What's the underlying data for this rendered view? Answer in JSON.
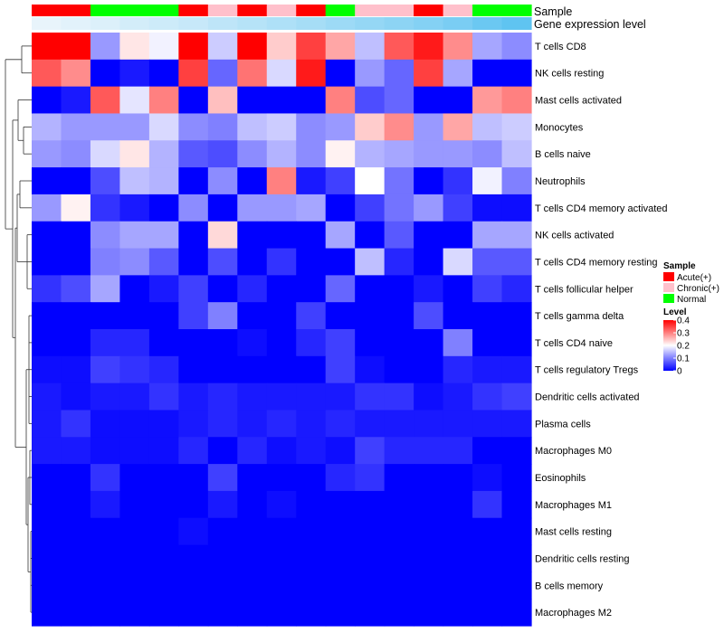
{
  "chart_data": {
    "type": "heatmap",
    "title": "",
    "annotations": {
      "sample_label": "Sample",
      "expression_label": "Gene expression level"
    },
    "sample_groups": [
      "Acute(+)",
      "Acute(+)",
      "Normal",
      "Normal",
      "Normal",
      "Acute(+)",
      "Chronic(+)",
      "Acute(+)",
      "Chronic(+)",
      "Acute(+)",
      "Normal",
      "Chronic(+)",
      "Chronic(+)",
      "Acute(+)",
      "Chronic(+)",
      "Normal",
      "Normal"
    ],
    "gene_expression": [
      0.02,
      0.05,
      0.08,
      0.12,
      0.15,
      0.18,
      0.22,
      0.26,
      0.3,
      0.34,
      0.38,
      0.42,
      0.46,
      0.5,
      0.55,
      0.62,
      0.68
    ],
    "rows": [
      "T cells CD8",
      "NK cells resting",
      "Mast cells activated",
      "Monocytes",
      "B cells naive",
      "Neutrophils",
      "T cells CD4 memory activated",
      "NK cells activated",
      "T cells CD4 memory resting",
      "T cells follicular helper",
      "T cells gamma delta",
      "T cells CD4 naive",
      "T cells regulatory  Tregs",
      "Dendritic cells activated",
      "Plasma cells",
      "Macrophages M0",
      "Eosinophils",
      "Macrophages M1",
      "Mast cells resting",
      "Dendritic cells resting",
      "B cells memory",
      "Macrophages M2"
    ],
    "values": [
      [
        0.4,
        0.4,
        0.12,
        0.22,
        0.19,
        0.4,
        0.16,
        0.4,
        0.24,
        0.35,
        0.27,
        0.15,
        0.33,
        0.38,
        0.29,
        0.13,
        0.11
      ],
      [
        0.33,
        0.29,
        0.0,
        0.02,
        0.0,
        0.35,
        0.08,
        0.31,
        0.17,
        0.38,
        0.0,
        0.12,
        0.08,
        0.35,
        0.13,
        0.0,
        0.0
      ],
      [
        0.0,
        0.02,
        0.33,
        0.18,
        0.3,
        0.0,
        0.25,
        0.0,
        0.0,
        0.0,
        0.3,
        0.06,
        0.08,
        0.0,
        0.0,
        0.28,
        0.3
      ],
      [
        0.14,
        0.12,
        0.12,
        0.12,
        0.17,
        0.11,
        0.1,
        0.15,
        0.16,
        0.11,
        0.12,
        0.24,
        0.29,
        0.12,
        0.27,
        0.15,
        0.16
      ],
      [
        0.12,
        0.11,
        0.17,
        0.22,
        0.14,
        0.07,
        0.06,
        0.11,
        0.14,
        0.11,
        0.21,
        0.14,
        0.13,
        0.12,
        0.12,
        0.11,
        0.15
      ],
      [
        0.0,
        0.0,
        0.06,
        0.15,
        0.14,
        0.0,
        0.11,
        0.0,
        0.3,
        0.02,
        0.05,
        0.2,
        0.09,
        0.0,
        0.04,
        0.19,
        0.1
      ],
      [
        0.12,
        0.21,
        0.04,
        0.02,
        0.0,
        0.11,
        0.0,
        0.12,
        0.12,
        0.13,
        0.0,
        0.05,
        0.09,
        0.12,
        0.05,
        0.01,
        0.01
      ],
      [
        0.0,
        0.0,
        0.11,
        0.13,
        0.13,
        0.0,
        0.23,
        0.0,
        0.0,
        0.0,
        0.13,
        0.0,
        0.07,
        0.0,
        0.0,
        0.13,
        0.13
      ],
      [
        0.0,
        0.0,
        0.1,
        0.11,
        0.07,
        0.0,
        0.06,
        0.0,
        0.04,
        0.0,
        0.0,
        0.15,
        0.03,
        0.0,
        0.17,
        0.07,
        0.07
      ],
      [
        0.04,
        0.06,
        0.13,
        0.0,
        0.02,
        0.05,
        0.0,
        0.03,
        0.0,
        0.0,
        0.08,
        0.0,
        0.0,
        0.02,
        0.0,
        0.05,
        0.03
      ],
      [
        0.0,
        0.0,
        0.0,
        0.0,
        0.0,
        0.05,
        0.1,
        0.0,
        0.0,
        0.05,
        0.0,
        0.0,
        0.0,
        0.06,
        0.0,
        0.0,
        0.0
      ],
      [
        0.0,
        0.0,
        0.03,
        0.03,
        0.0,
        0.0,
        0.0,
        0.01,
        0.0,
        0.03,
        0.05,
        0.0,
        0.0,
        0.0,
        0.1,
        0.0,
        0.0
      ],
      [
        0.01,
        0.01,
        0.05,
        0.04,
        0.03,
        0.0,
        0.0,
        0.0,
        0.0,
        0.0,
        0.05,
        0.01,
        0.0,
        0.0,
        0.03,
        0.02,
        0.02
      ],
      [
        0.02,
        0.01,
        0.02,
        0.02,
        0.04,
        0.02,
        0.03,
        0.02,
        0.02,
        0.02,
        0.02,
        0.04,
        0.04,
        0.01,
        0.02,
        0.04,
        0.05
      ],
      [
        0.02,
        0.04,
        0.01,
        0.01,
        0.01,
        0.02,
        0.03,
        0.02,
        0.03,
        0.02,
        0.03,
        0.02,
        0.02,
        0.02,
        0.02,
        0.02,
        0.02
      ],
      [
        0.02,
        0.02,
        0.01,
        0.01,
        0.01,
        0.03,
        0.0,
        0.03,
        0.01,
        0.02,
        0.01,
        0.05,
        0.03,
        0.03,
        0.03,
        0.0,
        0.0
      ],
      [
        0.0,
        0.0,
        0.04,
        0.0,
        0.0,
        0.0,
        0.05,
        0.0,
        0.0,
        0.0,
        0.03,
        0.04,
        0.0,
        0.0,
        0.0,
        0.01,
        0.0
      ],
      [
        0.0,
        0.0,
        0.02,
        0.0,
        0.0,
        0.0,
        0.02,
        0.0,
        0.01,
        0.0,
        0.0,
        0.0,
        0.0,
        0.0,
        0.0,
        0.04,
        0.0
      ],
      [
        0.0,
        0.0,
        0.0,
        0.0,
        0.0,
        0.01,
        0.0,
        0.0,
        0.0,
        0.0,
        0.0,
        0.0,
        0.0,
        0.0,
        0.0,
        0.0,
        0.0
      ],
      [
        0.0,
        0.0,
        0.0,
        0.0,
        0.0,
        0.0,
        0.0,
        0.0,
        0.0,
        0.0,
        0.0,
        0.0,
        0.0,
        0.0,
        0.0,
        0.0,
        0.0
      ],
      [
        0.0,
        0.0,
        0.0,
        0.0,
        0.0,
        0.0,
        0.0,
        0.0,
        0.0,
        0.0,
        0.0,
        0.0,
        0.0,
        0.0,
        0.0,
        0.0,
        0.0
      ],
      [
        0.0,
        0.0,
        0.0,
        0.0,
        0.0,
        0.0,
        0.0,
        0.0,
        0.0,
        0.0,
        0.0,
        0.0,
        0.0,
        0.0,
        0.0,
        0.0,
        0.0
      ]
    ],
    "legend": {
      "sample_title": "Sample",
      "sample_items": [
        {
          "label": "Acute(+)",
          "color": "#ff0000"
        },
        {
          "label": "Chronic(+)",
          "color": "#ffc0cb"
        },
        {
          "label": "Normal",
          "color": "#00ff00"
        }
      ],
      "level_title": "Level",
      "level_ticks": [
        "0.4",
        "0.3",
        "0.2",
        "0.1",
        "0"
      ],
      "level_range": [
        0,
        0.4
      ]
    },
    "colors": {
      "low": "#0000ff",
      "mid": "#ffffff",
      "high": "#ff0000",
      "expr_low": "#e8f4fb",
      "expr_high": "#5fc4f1",
      "dendrogram": "#333333"
    }
  }
}
